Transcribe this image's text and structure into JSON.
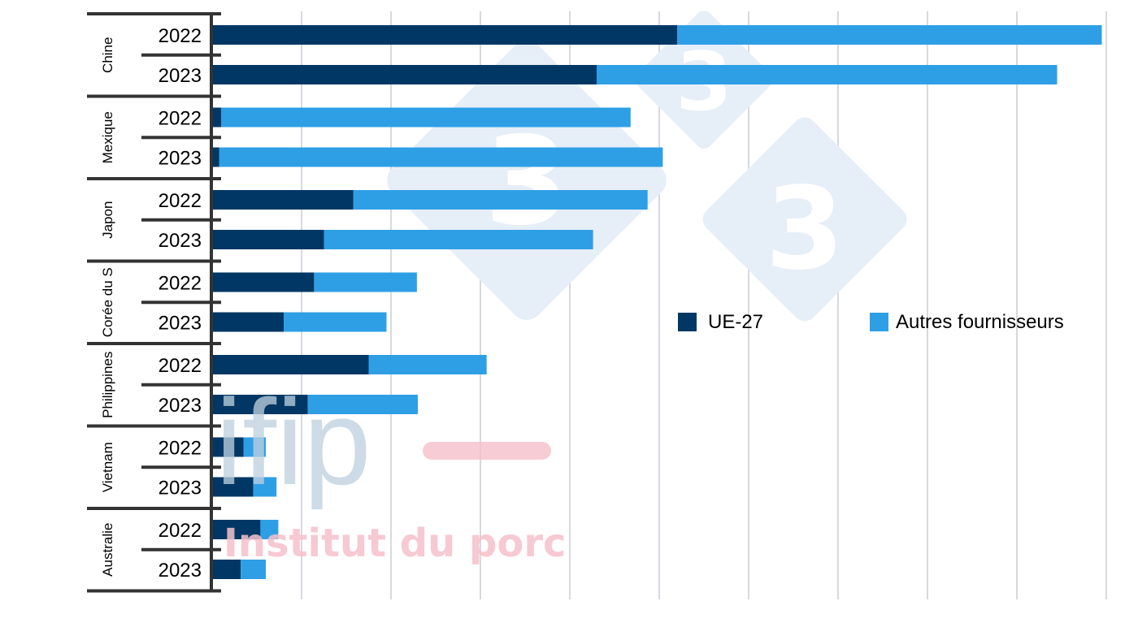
{
  "chart_data": {
    "type": "bar",
    "orientation": "horizontal",
    "stacked": true,
    "title": "",
    "xlabel": "",
    "ylabel": "",
    "xlim": [
      0,
      100
    ],
    "grid": true,
    "legend_position": "right",
    "groups": [
      {
        "country": "Chine",
        "years": [
          "2022",
          "2023"
        ],
        "ue27": [
          52,
          43
        ],
        "autres": [
          47.5,
          51.5
        ]
      },
      {
        "country": "Mexique",
        "years": [
          "2022",
          "2023"
        ],
        "ue27": [
          1,
          0.8
        ],
        "autres": [
          45.8,
          49.6
        ]
      },
      {
        "country": "Japon",
        "years": [
          "2022",
          "2023"
        ],
        "ue27": [
          15.8,
          12.5
        ],
        "autres": [
          32.9,
          30.1
        ]
      },
      {
        "country": "Corée du S",
        "years": [
          "2022",
          "2023"
        ],
        "ue27": [
          11.4,
          8
        ],
        "autres": [
          11.5,
          11.5
        ]
      },
      {
        "country": "Philippines",
        "years": [
          "2022",
          "2023"
        ],
        "ue27": [
          17.5,
          10.7
        ],
        "autres": [
          13.2,
          12.3
        ]
      },
      {
        "country": "Vietnam",
        "years": [
          "2022",
          "2023"
        ],
        "ue27": [
          3.5,
          4.6
        ],
        "autres": [
          2.5,
          2.6
        ]
      },
      {
        "country": "Australie",
        "years": [
          "2022",
          "2023"
        ],
        "ue27": [
          5.4,
          3.2
        ],
        "autres": [
          2,
          2.8
        ]
      }
    ],
    "series": [
      {
        "name": "UE-27",
        "color": "#003764"
      },
      {
        "name": "Autres fournisseurs",
        "color": "#2f9fe5"
      }
    ]
  },
  "watermark": {
    "digit": "3",
    "logo_text": "ifip",
    "logo_subtitle": "Institut du porc"
  }
}
